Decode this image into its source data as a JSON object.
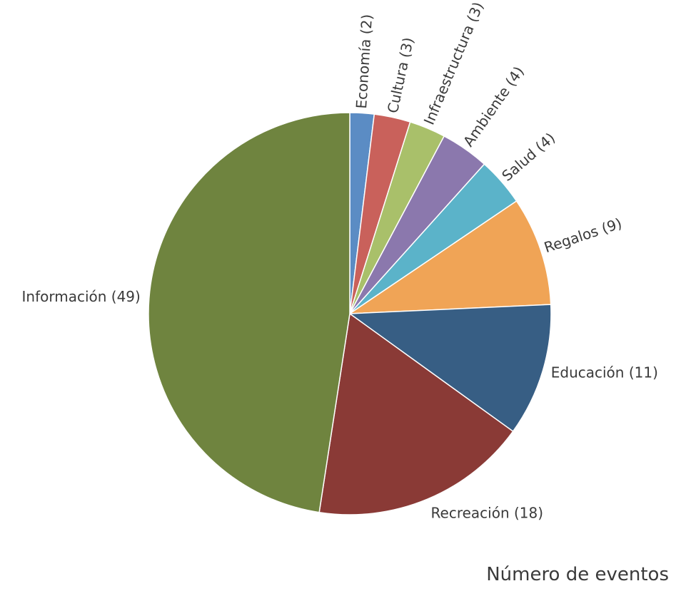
{
  "caption": "Número de eventos",
  "chart_data": {
    "type": "pie",
    "start_angle_deg": 0,
    "direction": "clockwise",
    "slices": [
      {
        "label": "Economía (2)",
        "category": "Economía",
        "value": 2,
        "color": "#5b8cc4"
      },
      {
        "label": "Cultura (3)",
        "category": "Cultura",
        "value": 3,
        "color": "#c9615b"
      },
      {
        "label": "Infraestructura (3)",
        "category": "Infraestructura",
        "value": 3,
        "color": "#a9c06a"
      },
      {
        "label": "Ambiente (4)",
        "category": "Ambiente",
        "value": 4,
        "color": "#8b78ad"
      },
      {
        "label": "Salud (4)",
        "category": "Salud",
        "value": 4,
        "color": "#5bb3c9"
      },
      {
        "label": "Regalos (9)",
        "category": "Regalos",
        "value": 9,
        "color": "#f0a456"
      },
      {
        "label": "Educación (11)",
        "category": "Educación",
        "value": 11,
        "color": "#375e84"
      },
      {
        "label": "Recreación (18)",
        "category": "Recreación",
        "value": 18,
        "color": "#8a3a36"
      },
      {
        "label": "Información (49)",
        "category": "Información",
        "value": 49,
        "color": "#6f843f"
      }
    ]
  }
}
